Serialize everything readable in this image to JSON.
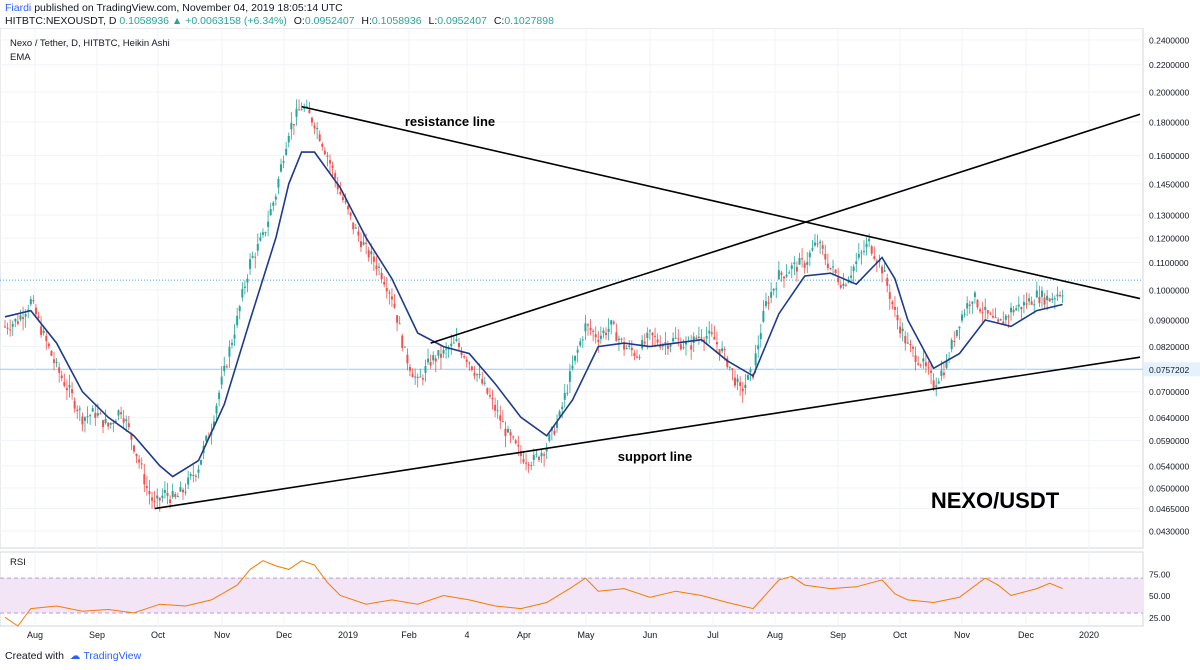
{
  "header": {
    "author": "Fiardi",
    "published": "published on TradingView.com, November 04, 2019 18:05:14 UTC",
    "symbol": "HITBTC:NEXOUSDT, D",
    "last": "0.1058936",
    "change": "+0.0063158 (+6.34%)",
    "o_label": "O:",
    "o_value": "0.0952407",
    "h_label": "H:",
    "h_value": "0.1058936",
    "l_label": "L:",
    "l_value": "0.0952407",
    "c_label": "C:",
    "c_value": "0.1027898"
  },
  "footer": {
    "created": "Created with",
    "brand": "TradingView"
  },
  "chart_data": [
    {
      "type": "candlestick",
      "title": "Nexo / Tether, D, HITBTC, Heikin Ashi",
      "indicator": "EMA",
      "big_label": "NEXO/USDT",
      "price_ticks": [
        "0.2400000",
        "0.2200000",
        "0.2000000",
        "0.1800000",
        "0.1600000",
        "0.1450000",
        "0.1300000",
        "0.1200000",
        "0.1100000",
        "0.1000000",
        "0.0900000",
        "0.0820000",
        "0.0757202",
        "0.0700000",
        "0.0640000",
        "0.0590000",
        "0.0540000",
        "0.0500000",
        "0.0465000",
        "0.0430000"
      ],
      "price_tick_values": [
        0.24,
        0.22,
        0.2,
        0.18,
        0.16,
        0.145,
        0.13,
        0.12,
        0.11,
        0.1,
        0.09,
        0.082,
        0.0757202,
        0.07,
        0.064,
        0.059,
        0.054,
        0.05,
        0.0465,
        0.043
      ],
      "scale": "log",
      "highlighted_price": "0.0757202",
      "time_ticks": [
        "Aug",
        "Sep",
        "Oct",
        "Nov",
        "Dec",
        "2019",
        "Feb",
        "4",
        "Apr",
        "May",
        "Jun",
        "Jul",
        "Aug",
        "Sep",
        "Oct",
        "Nov",
        "Dec",
        "2020"
      ],
      "price_path": [
        [
          0,
          0.088
        ],
        [
          5,
          0.09
        ],
        [
          10,
          0.096
        ],
        [
          15,
          0.085
        ],
        [
          20,
          0.076
        ],
        [
          25,
          0.07
        ],
        [
          30,
          0.064
        ],
        [
          35,
          0.065
        ],
        [
          40,
          0.062
        ],
        [
          45,
          0.066
        ],
        [
          50,
          0.058
        ],
        [
          55,
          0.05
        ],
        [
          58,
          0.047
        ],
        [
          62,
          0.049
        ],
        [
          66,
          0.048
        ],
        [
          70,
          0.05
        ],
        [
          75,
          0.054
        ],
        [
          80,
          0.062
        ],
        [
          85,
          0.075
        ],
        [
          90,
          0.09
        ],
        [
          95,
          0.11
        ],
        [
          100,
          0.12
        ],
        [
          105,
          0.14
        ],
        [
          110,
          0.175
        ],
        [
          115,
          0.19
        ],
        [
          120,
          0.18
        ],
        [
          125,
          0.16
        ],
        [
          130,
          0.14
        ],
        [
          135,
          0.125
        ],
        [
          140,
          0.115
        ],
        [
          145,
          0.108
        ],
        [
          150,
          0.098
        ],
        [
          155,
          0.08
        ],
        [
          160,
          0.072
        ],
        [
          165,
          0.078
        ],
        [
          170,
          0.08
        ],
        [
          175,
          0.083
        ],
        [
          180,
          0.078
        ],
        [
          185,
          0.072
        ],
        [
          190,
          0.066
        ],
        [
          195,
          0.06
        ],
        [
          200,
          0.056
        ],
        [
          205,
          0.055
        ],
        [
          210,
          0.058
        ],
        [
          215,
          0.064
        ],
        [
          220,
          0.076
        ],
        [
          225,
          0.088
        ],
        [
          230,
          0.085
        ],
        [
          235,
          0.088
        ],
        [
          240,
          0.082
        ],
        [
          245,
          0.08
        ],
        [
          250,
          0.085
        ],
        [
          255,
          0.083
        ],
        [
          260,
          0.084
        ],
        [
          265,
          0.082
        ],
        [
          270,
          0.086
        ],
        [
          275,
          0.084
        ],
        [
          280,
          0.078
        ],
        [
          285,
          0.07
        ],
        [
          290,
          0.075
        ],
        [
          295,
          0.095
        ],
        [
          300,
          0.105
        ],
        [
          305,
          0.108
        ],
        [
          310,
          0.11
        ],
        [
          315,
          0.118
        ],
        [
          320,
          0.108
        ],
        [
          325,
          0.102
        ],
        [
          330,
          0.11
        ],
        [
          335,
          0.118
        ],
        [
          340,
          0.108
        ],
        [
          345,
          0.092
        ],
        [
          350,
          0.082
        ],
        [
          355,
          0.078
        ],
        [
          360,
          0.072
        ],
        [
          365,
          0.077
        ],
        [
          370,
          0.09
        ],
        [
          375,
          0.098
        ],
        [
          380,
          0.092
        ],
        [
          385,
          0.088
        ],
        [
          390,
          0.093
        ],
        [
          395,
          0.095
        ],
        [
          400,
          0.098
        ],
        [
          405,
          0.097
        ],
        [
          410,
          0.1
        ]
      ],
      "ema_path": [
        [
          0,
          0.091
        ],
        [
          10,
          0.093
        ],
        [
          20,
          0.083
        ],
        [
          30,
          0.07
        ],
        [
          40,
          0.064
        ],
        [
          50,
          0.06
        ],
        [
          60,
          0.054
        ],
        [
          65,
          0.052
        ],
        [
          75,
          0.055
        ],
        [
          85,
          0.067
        ],
        [
          95,
          0.09
        ],
        [
          105,
          0.12
        ],
        [
          110,
          0.145
        ],
        [
          115,
          0.162
        ],
        [
          120,
          0.162
        ],
        [
          130,
          0.143
        ],
        [
          140,
          0.12
        ],
        [
          150,
          0.104
        ],
        [
          160,
          0.086
        ],
        [
          170,
          0.082
        ],
        [
          180,
          0.08
        ],
        [
          190,
          0.072
        ],
        [
          200,
          0.064
        ],
        [
          210,
          0.06
        ],
        [
          220,
          0.068
        ],
        [
          230,
          0.082
        ],
        [
          240,
          0.083
        ],
        [
          250,
          0.082
        ],
        [
          260,
          0.083
        ],
        [
          270,
          0.084
        ],
        [
          280,
          0.078
        ],
        [
          290,
          0.074
        ],
        [
          300,
          0.092
        ],
        [
          310,
          0.105
        ],
        [
          320,
          0.106
        ],
        [
          330,
          0.102
        ],
        [
          340,
          0.112
        ],
        [
          345,
          0.104
        ],
        [
          350,
          0.09
        ],
        [
          360,
          0.076
        ],
        [
          370,
          0.08
        ],
        [
          380,
          0.09
        ],
        [
          390,
          0.088
        ],
        [
          400,
          0.093
        ],
        [
          410,
          0.095
        ]
      ],
      "trend_lines": [
        {
          "name": "resistance line",
          "from": [
            115,
            0.19
          ],
          "to": [
            440,
            0.097
          ]
        },
        {
          "name": "support line",
          "from": [
            58,
            0.0465
          ],
          "to": [
            440,
            0.079
          ]
        },
        {
          "name": "",
          "from": [
            165,
            0.083
          ],
          "to": [
            440,
            0.185
          ]
        }
      ],
      "annotations": [
        "resistance line",
        "support line"
      ],
      "colors": {
        "up": "#26a69a",
        "down": "#ef5350",
        "ema": "#1e3a8a",
        "trend": "#000000"
      }
    },
    {
      "type": "line",
      "title": "RSI",
      "ticks": [
        "75.00",
        "50.00",
        "25.00"
      ],
      "tick_values": [
        75,
        50,
        25
      ],
      "band": [
        30,
        70
      ],
      "ylim": [
        15,
        100
      ],
      "path": [
        [
          0,
          25
        ],
        [
          5,
          15
        ],
        [
          10,
          35
        ],
        [
          20,
          38
        ],
        [
          30,
          32
        ],
        [
          40,
          34
        ],
        [
          50,
          30
        ],
        [
          60,
          40
        ],
        [
          70,
          38
        ],
        [
          80,
          45
        ],
        [
          90,
          62
        ],
        [
          95,
          80
        ],
        [
          100,
          90
        ],
        [
          105,
          84
        ],
        [
          110,
          80
        ],
        [
          115,
          90
        ],
        [
          120,
          85
        ],
        [
          125,
          65
        ],
        [
          130,
          50
        ],
        [
          140,
          40
        ],
        [
          150,
          45
        ],
        [
          160,
          40
        ],
        [
          170,
          50
        ],
        [
          180,
          45
        ],
        [
          190,
          38
        ],
        [
          200,
          35
        ],
        [
          210,
          42
        ],
        [
          220,
          60
        ],
        [
          225,
          70
        ],
        [
          230,
          55
        ],
        [
          240,
          58
        ],
        [
          250,
          48
        ],
        [
          260,
          55
        ],
        [
          270,
          50
        ],
        [
          280,
          42
        ],
        [
          290,
          35
        ],
        [
          300,
          68
        ],
        [
          305,
          72
        ],
        [
          310,
          62
        ],
        [
          320,
          58
        ],
        [
          330,
          60
        ],
        [
          340,
          68
        ],
        [
          345,
          52
        ],
        [
          350,
          45
        ],
        [
          360,
          42
        ],
        [
          370,
          48
        ],
        [
          380,
          70
        ],
        [
          385,
          62
        ],
        [
          390,
          50
        ],
        [
          400,
          58
        ],
        [
          405,
          64
        ],
        [
          410,
          58
        ]
      ],
      "color": "#f57c00"
    }
  ]
}
